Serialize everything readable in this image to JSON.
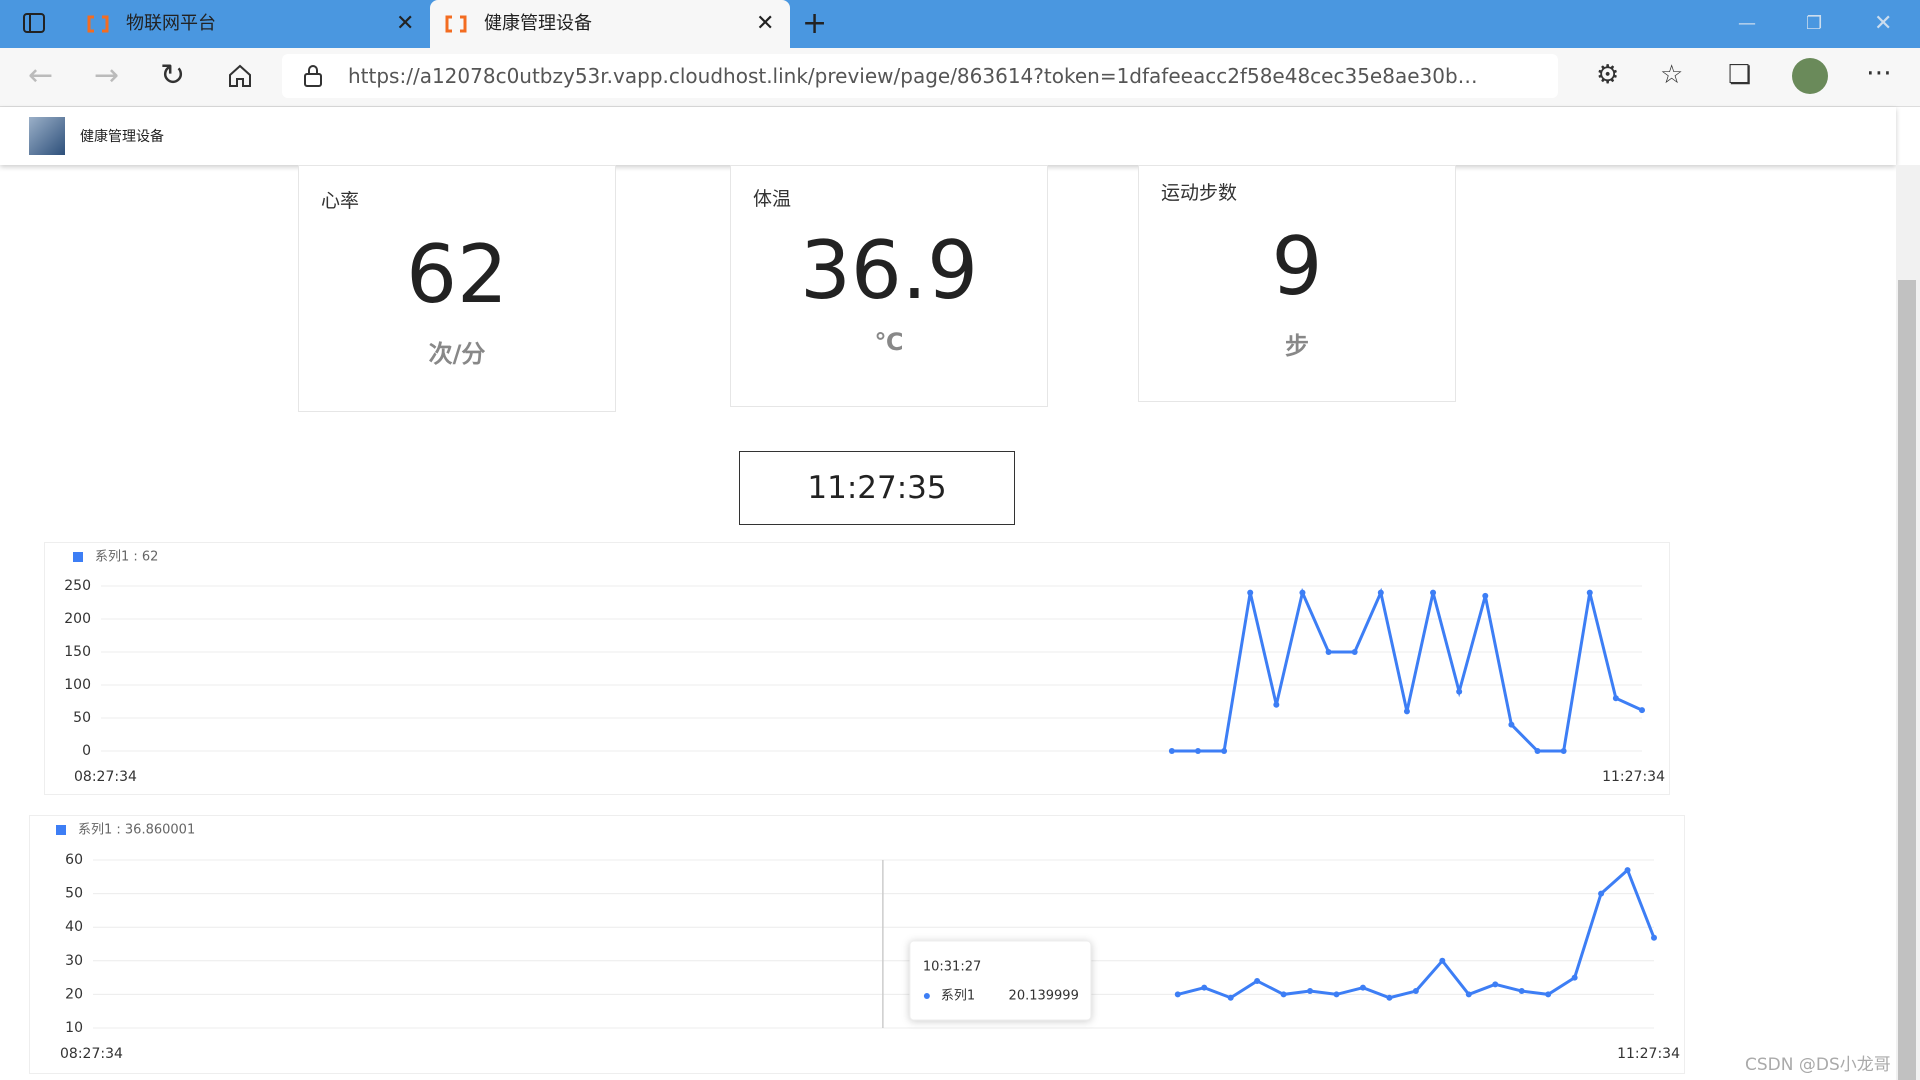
{
  "browser": {
    "tabs": [
      "物联网平台",
      "健康管理设备"
    ],
    "url": "https://a12078c0utbzy53r.vapp.cloudhost.link/preview/page/863614?token=1dfafeeacc2f58e48cec35e8ae30b…"
  },
  "header": {
    "title": "健康管理设备"
  },
  "cards": [
    {
      "label": "心率",
      "value": 62,
      "unit": "次/分"
    },
    {
      "label": "体温",
      "value": 36.9,
      "unit": "℃"
    },
    {
      "label": "运动步数",
      "value": 9,
      "unit": "步"
    }
  ],
  "clock": "11:27:35",
  "charts": [
    {
      "type": "line",
      "legend": "系列1 : 62",
      "color": "#3d7ef5",
      "categories": [
        "08:27:34",
        null,
        null,
        null,
        null,
        null,
        null,
        null,
        null,
        null,
        null,
        null,
        null,
        null,
        null,
        null,
        null,
        null,
        null,
        null,
        null,
        null,
        null,
        null,
        null,
        null,
        null,
        null,
        null,
        null,
        null,
        null,
        null,
        null,
        null,
        null,
        null,
        null,
        null,
        null,
        null,
        null,
        null,
        null,
        null,
        null,
        null,
        null,
        null,
        null,
        null,
        null,
        null,
        null,
        null,
        null,
        null,
        null,
        null,
        "11:27:34"
      ],
      "values": [
        null,
        null,
        null,
        null,
        null,
        null,
        null,
        null,
        null,
        null,
        null,
        null,
        null,
        null,
        null,
        null,
        null,
        null,
        null,
        null,
        null,
        null,
        null,
        null,
        null,
        null,
        null,
        null,
        null,
        null,
        null,
        null,
        null,
        null,
        null,
        null,
        null,
        null,
        null,
        null,
        null,
        0,
        0,
        0,
        240,
        70,
        240,
        150,
        150,
        240,
        60,
        240,
        90,
        235,
        40,
        0,
        0,
        240,
        80,
        62
      ],
      "ylim": [
        0,
        250
      ],
      "yticks": [
        0,
        50,
        100,
        150,
        200,
        250
      ],
      "grid": true
    },
    {
      "type": "line",
      "legend": "系列1 : 36.860001",
      "color": "#3d7ef5",
      "categories": [
        "08:27:34",
        null,
        null,
        null,
        null,
        null,
        null,
        null,
        null,
        null,
        null,
        null,
        null,
        null,
        null,
        null,
        null,
        null,
        null,
        null,
        null,
        null,
        null,
        null,
        null,
        null,
        null,
        null,
        null,
        null,
        null,
        null,
        null,
        null,
        null,
        null,
        null,
        null,
        null,
        null,
        null,
        null,
        null,
        null,
        null,
        null,
        null,
        null,
        null,
        null,
        null,
        null,
        null,
        null,
        null,
        null,
        null,
        null,
        null,
        "11:27:34"
      ],
      "values": [
        null,
        null,
        null,
        null,
        null,
        null,
        null,
        null,
        null,
        null,
        null,
        null,
        null,
        null,
        null,
        null,
        null,
        null,
        null,
        null,
        null,
        null,
        null,
        null,
        null,
        null,
        null,
        null,
        null,
        null,
        null,
        null,
        null,
        null,
        null,
        null,
        null,
        null,
        null,
        null,
        null,
        20,
        22,
        19,
        24,
        20,
        21,
        20,
        22,
        19,
        21,
        30,
        20,
        23,
        21,
        20,
        25,
        50,
        57,
        36.86
      ],
      "ylim": [
        10,
        60
      ],
      "yticks": [
        10,
        20,
        30,
        40,
        50,
        60
      ],
      "grid": true,
      "tooltip": {
        "time": "10:31:27",
        "series": "系列1",
        "value": 20.139999
      }
    }
  ],
  "watermark": "CSDN @DS小龙哥"
}
